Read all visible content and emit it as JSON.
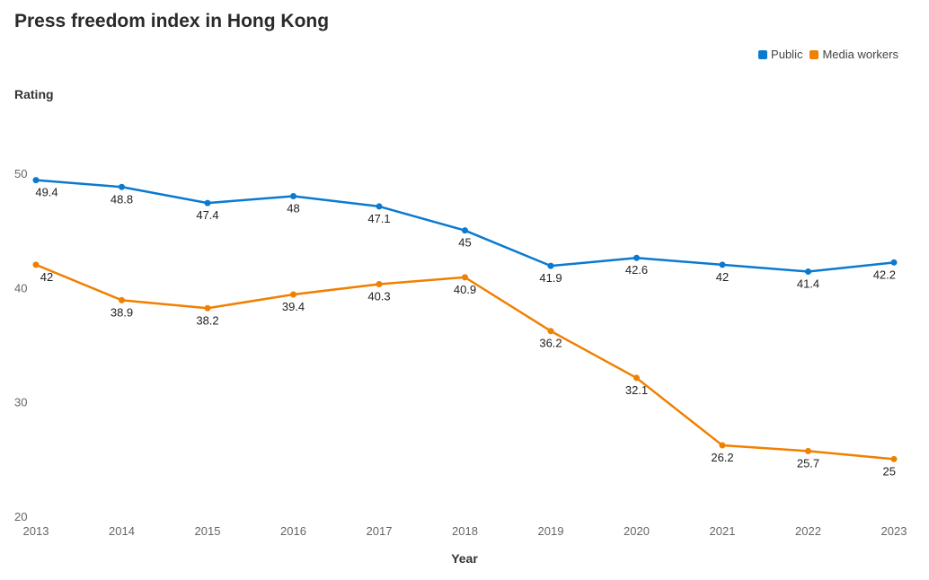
{
  "page": {
    "title": "Press freedom index in Hong Kong"
  },
  "legend": {
    "items": [
      {
        "name": "Public",
        "color": "#0a7ad1"
      },
      {
        "name": "Media workers",
        "color": "#f08000"
      }
    ]
  },
  "chart_data": {
    "type": "line",
    "title": "Press freedom index in Hong Kong",
    "xlabel": "Year",
    "ylabel": "Rating",
    "x": [
      "2013",
      "2014",
      "2015",
      "2016",
      "2017",
      "2018",
      "2019",
      "2020",
      "2021",
      "2022",
      "2023"
    ],
    "y_ticks": [
      20,
      30,
      40,
      50
    ],
    "ylim": [
      20,
      50
    ],
    "grid": false,
    "legend_position": "top-right",
    "series": [
      {
        "name": "Public",
        "color": "#0a7ad1",
        "values": [
          49.4,
          48.8,
          47.4,
          48,
          47.1,
          45,
          41.9,
          42.6,
          42,
          41.4,
          42.2
        ]
      },
      {
        "name": "Media workers",
        "color": "#f08000",
        "values": [
          42,
          38.9,
          38.2,
          39.4,
          40.3,
          40.9,
          36.2,
          32.1,
          26.2,
          25.7,
          25
        ]
      }
    ]
  }
}
